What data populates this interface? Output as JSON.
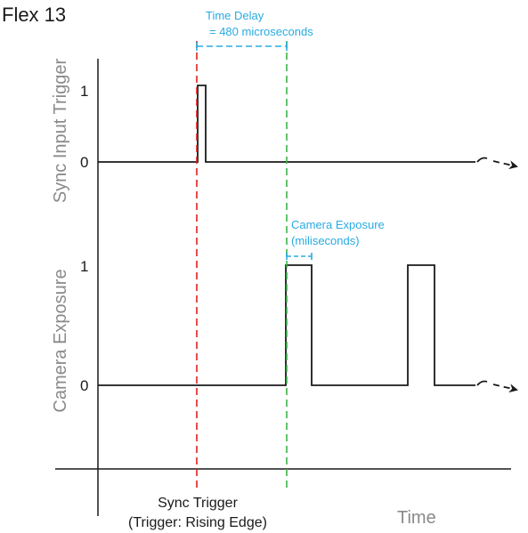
{
  "title": "Flex 13",
  "delay_annotation": {
    "line1": "Time Delay",
    "line2": "= 480 microseconds"
  },
  "exposure_annotation": {
    "line1": "Camera Exposure",
    "line2": "(miliseconds)"
  },
  "top_plot": {
    "ylabel": "Sync Input Trigger",
    "tick_high": "1",
    "tick_low": "0"
  },
  "bottom_plot": {
    "ylabel": "Camera Exposure",
    "tick_high": "1",
    "tick_low": "0"
  },
  "trigger_label": {
    "line1": "Sync Trigger",
    "line2": "(Trigger:  Rising Edge)"
  },
  "x_axis_label": "Time",
  "colors": {
    "trigger_line": "#e02020",
    "exposure_start_line": "#3cb44a",
    "annotation": "#29abe2",
    "signal": "#1a1a1a",
    "axis_label": "#8a8a8a"
  }
}
